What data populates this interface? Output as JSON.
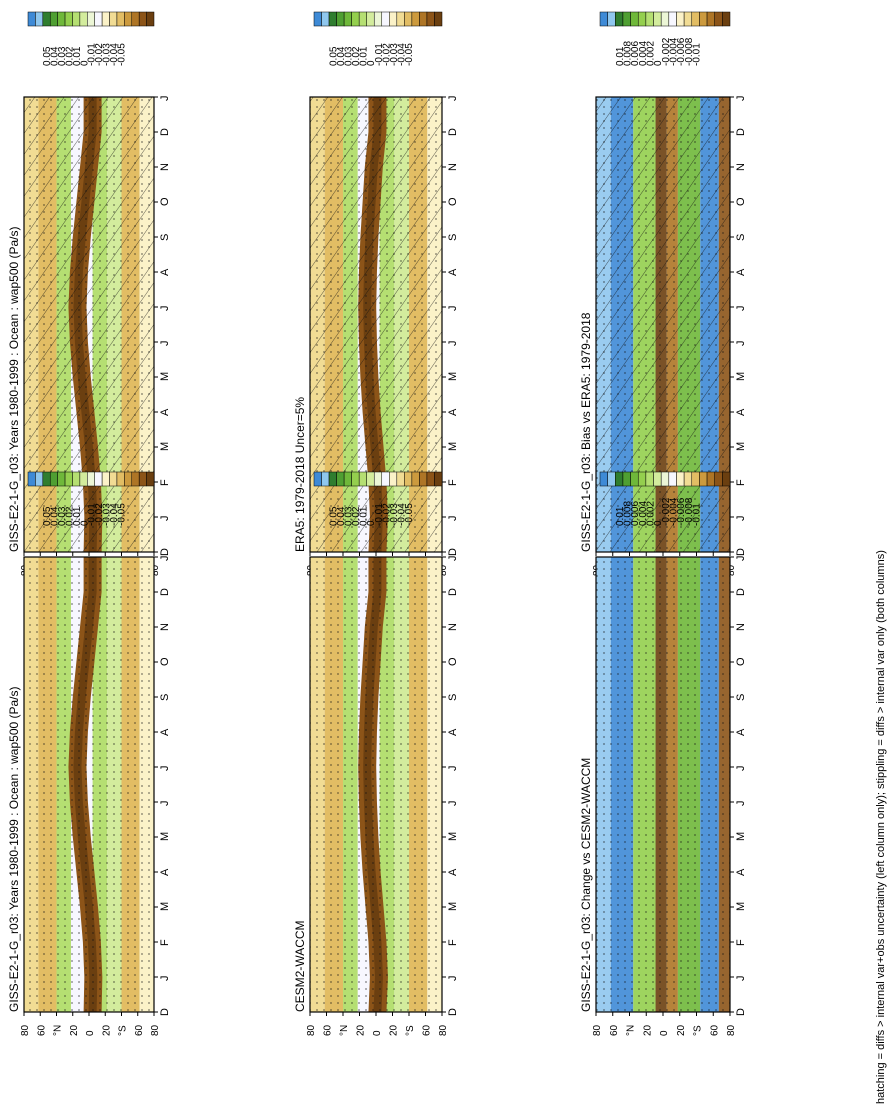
{
  "footnote": "hatching = diffs > internal var+obs uncertainty (left column only); stippling = diffs > internal var only (both columns)",
  "palettes": {
    "clim": [
      "#3e8ad6",
      "#8fc7ee",
      "#2f7d2f",
      "#4f9f32",
      "#6fb83a",
      "#94cf4e",
      "#b5df72",
      "#d3ec9d",
      "#ecf6d6",
      "#f7f7ff",
      "#fbf2c8",
      "#f1dc94",
      "#e2bd64",
      "#cc9a3e",
      "#ae7526",
      "#8c5418",
      "#6b3f10"
    ],
    "diff": [
      "#3e8ad6",
      "#8fc7ee",
      "#2f7d2f",
      "#4f9f32",
      "#6fb83a",
      "#94cf4e",
      "#b5df72",
      "#d3ec9d",
      "#ecf6d6",
      "#f7f7ff",
      "#fbf2c8",
      "#f1dc94",
      "#e2bd64",
      "#cc9a3e",
      "#ae7526",
      "#8c5418",
      "#6b3f10"
    ]
  },
  "colorbars": {
    "clim": [
      "0.05",
      "0.04",
      "0.03",
      "0.02",
      "0.01",
      "0",
      "-0.01",
      "-0.02",
      "-0.03",
      "-0.04",
      "-0.05"
    ],
    "diff": [
      "0.01",
      "0.008",
      "0.006",
      "0.004",
      "0.002",
      "0",
      "-0.002",
      "-0.004",
      "-0.006",
      "-0.008",
      "-0.01"
    ]
  },
  "months": [
    "D",
    "J",
    "F",
    "M",
    "A",
    "M",
    "J",
    "J",
    "A",
    "S",
    "O",
    "N",
    "D",
    "J"
  ],
  "lat_ticks": [
    "80",
    "60",
    "°N",
    "20",
    "0",
    "20",
    "°S",
    "60",
    "80"
  ],
  "chart_data": [
    {
      "type": "heatmap",
      "title": "GISS-E2-1-G_r03: Years 1980-1999 : Ocean : wap500 (Pa/s)",
      "colorbar": "clim",
      "hatching": true,
      "stippling": true,
      "x": "month",
      "y": "latitude",
      "ylim": [
        -90,
        90
      ],
      "features": {
        "itcz_center_lat": [
          -5,
          -6,
          -4,
          0,
          5,
          10,
          14,
          16,
          14,
          10,
          5,
          0,
          -5
        ],
        "itcz_value": -0.05,
        "subsidence_value": 0.02
      }
    },
    {
      "type": "heatmap",
      "title": "GISS-E2-1-G_r03: Years 1980-1999 : Ocean : wap500 (Pa/s)",
      "colorbar": "clim",
      "hatching": false,
      "stippling": true,
      "x": "month",
      "y": "latitude",
      "ylim": [
        -90,
        90
      ],
      "features": {
        "itcz_center_lat": [
          -5,
          -6,
          -4,
          0,
          5,
          10,
          14,
          16,
          14,
          10,
          5,
          0,
          -5
        ],
        "itcz_value": -0.05,
        "subsidence_value": 0.02
      }
    },
    {
      "type": "heatmap",
      "title": "ERA5: 1979-2018 Uncer=5%",
      "colorbar": "clim",
      "hatching": true,
      "stippling": true,
      "x": "month",
      "y": "latitude",
      "ylim": [
        -90,
        90
      ],
      "features": {
        "itcz_center_lat": [
          -2,
          -4,
          -2,
          2,
          6,
          9,
          11,
          12,
          11,
          9,
          6,
          3,
          -2
        ],
        "itcz_value": -0.04,
        "subsidence_value": 0.02
      }
    },
    {
      "type": "heatmap",
      "title": "CESM2-WACCM",
      "colorbar": "clim",
      "hatching": false,
      "stippling": true,
      "x": "month",
      "y": "latitude",
      "ylim": [
        -90,
        90
      ],
      "features": {
        "itcz_center_lat": [
          -2,
          -4,
          -2,
          2,
          6,
          9,
          11,
          12,
          11,
          9,
          6,
          3,
          -2
        ],
        "itcz_value": -0.04,
        "subsidence_value": 0.02
      }
    },
    {
      "type": "heatmap",
      "title": "GISS-E2-1-G_r03: Bias vs ERA5: 1979-2018",
      "colorbar": "diff",
      "hatching": true,
      "stippling": true,
      "x": "month",
      "y": "latitude",
      "ylim": [
        -90,
        90
      ],
      "features": {
        "dipole_value": 0.01
      }
    },
    {
      "type": "heatmap",
      "title": "GISS-E2-1-G_r03: Change vs CESM2-WACCM",
      "colorbar": "diff",
      "hatching": false,
      "stippling": true,
      "x": "month",
      "y": "latitude",
      "ylim": [
        -90,
        90
      ],
      "features": {
        "dipole_value": 0.01
      }
    }
  ]
}
